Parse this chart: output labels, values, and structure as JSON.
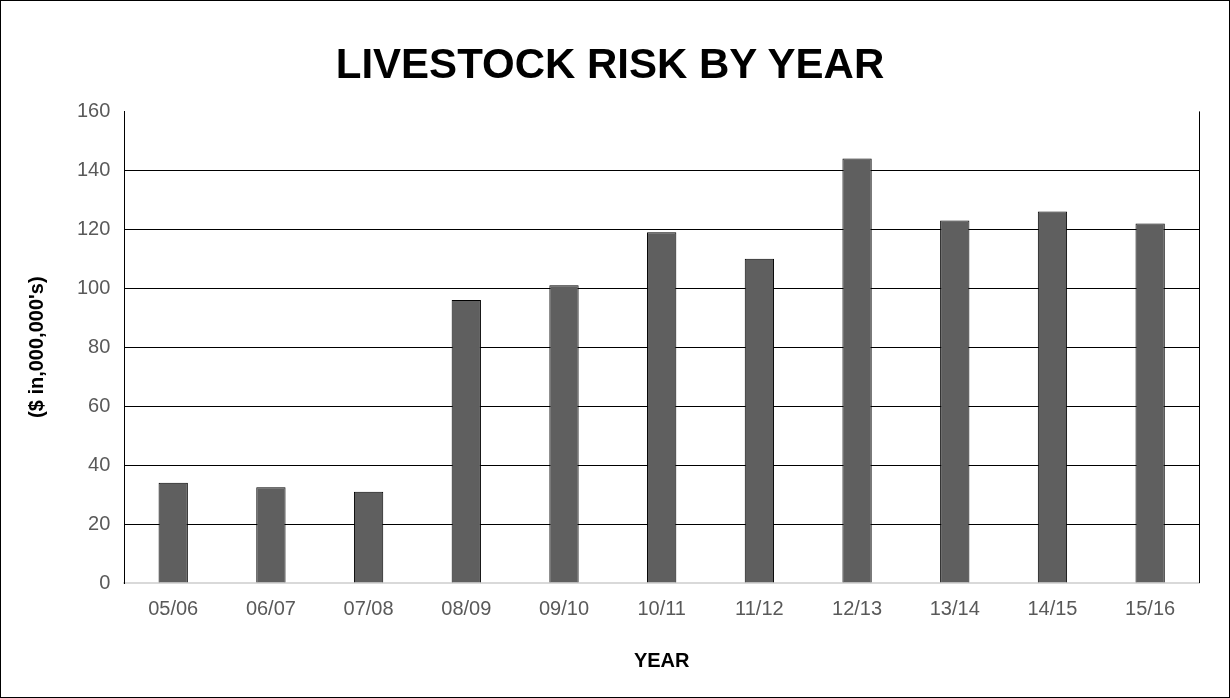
{
  "chart_data": {
    "type": "bar",
    "title": "LIVESTOCK RISK BY YEAR",
    "xlabel": "YEAR",
    "ylabel": "($ in,000,000's)",
    "categories": [
      "05/06",
      "06/07",
      "07/08",
      "08/09",
      "09/10",
      "10/11",
      "11/12",
      "12/13",
      "13/14",
      "14/15",
      "15/16"
    ],
    "values": [
      34,
      32.5,
      31,
      96,
      101,
      119,
      110,
      144,
      123,
      126,
      122
    ],
    "color": "#5f5f5f",
    "ylim": [
      0,
      160
    ],
    "yticks": [
      0,
      20,
      40,
      60,
      80,
      100,
      120,
      140,
      160
    ],
    "grid": "y",
    "legend": false
  }
}
